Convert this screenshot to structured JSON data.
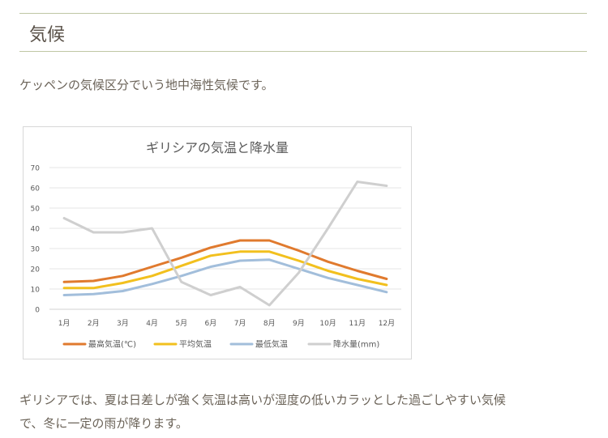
{
  "section": {
    "title": "気候"
  },
  "intro": {
    "text": "ケッペンの気候区分でいう地中海性気候です。"
  },
  "outro": {
    "line1": "ギリシアでは、夏は日差しが強く気温は高いが湿度の低いカラッとした過ごしやすい気候",
    "line2": "で、冬に一定の雨が降ります。"
  },
  "chart_data": {
    "type": "line",
    "title": "ギリシアの気温と降水量",
    "categories": [
      "1月",
      "2月",
      "3月",
      "4月",
      "5月",
      "6月",
      "7月",
      "8月",
      "9月",
      "10月",
      "11月",
      "12月"
    ],
    "ylim": [
      0,
      70
    ],
    "yticks": [
      0,
      10,
      20,
      30,
      40,
      50,
      60,
      70
    ],
    "grid": true,
    "legend_position": "bottom",
    "series": [
      {
        "name": "最高気温(℃)",
        "color": "#e07a2e",
        "values": [
          13.5,
          14,
          16.5,
          21,
          25.5,
          30.5,
          34,
          34,
          29,
          23.5,
          19,
          15
        ]
      },
      {
        "name": "平均気温",
        "color": "#f2c01e",
        "values": [
          10.5,
          10.5,
          13,
          16.5,
          21.5,
          26.5,
          28.5,
          28.5,
          24,
          19,
          15,
          12
        ]
      },
      {
        "name": "最低気温",
        "color": "#a2bedb",
        "values": [
          7,
          7.5,
          9,
          12.5,
          16.5,
          21,
          24,
          24.5,
          20,
          15.5,
          12,
          8.5
        ]
      },
      {
        "name": "降水量(mm)",
        "color": "#cfcfcf",
        "values": [
          45,
          38,
          38,
          40,
          13.5,
          7,
          11,
          2,
          18,
          40,
          63,
          61
        ]
      }
    ]
  }
}
